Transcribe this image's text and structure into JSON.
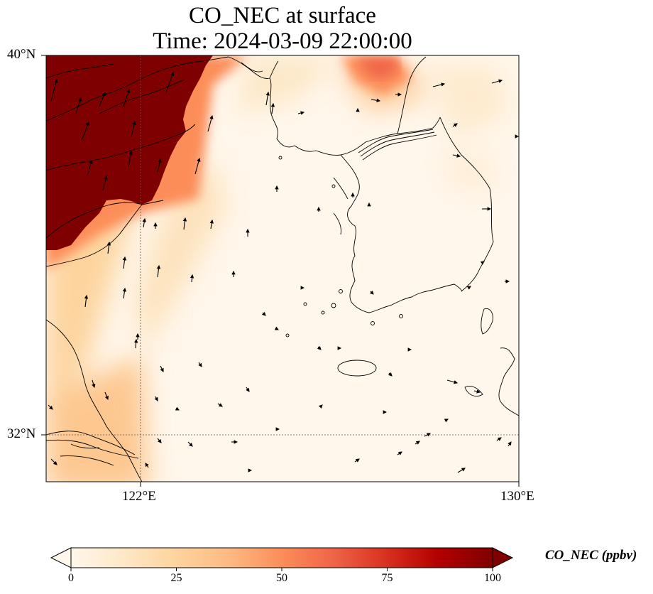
{
  "title": {
    "line1": "CO_NEC at surface",
    "line2": "Time: 2024-03-09 22:00:00"
  },
  "axes": {
    "lat_ticks": [
      "40°N",
      "32°N"
    ],
    "lon_ticks": [
      "122°E",
      "130°E"
    ],
    "lon_range": [
      120,
      130
    ],
    "lat_range": [
      31,
      40
    ],
    "gridlines": "dotted at 122°E and 32°N"
  },
  "colorbar": {
    "label": "CO_NEC (ppbv)",
    "ticks": [
      "0",
      "25",
      "50",
      "75",
      "100"
    ],
    "range": [
      0,
      100
    ],
    "colormap": "OrRd",
    "extend": "both",
    "colors": [
      "#fff7ec",
      "#fee8c8",
      "#fdd49e",
      "#fdbb84",
      "#fc8d59",
      "#ef6548",
      "#d7301f",
      "#b30000",
      "#7f0000"
    ]
  },
  "field_summary": {
    "high_region": "northwest (Shandong / Bohai), saturated above 100 ppbv",
    "secondary_plume": "near 126.5°E 39.7°N (North Korea west coast)",
    "background": "low values over Yellow Sea, Korean peninsula, East Sea"
  },
  "wind_vectors": "black arrows, mostly northward in the west, eastward in the northeast"
}
